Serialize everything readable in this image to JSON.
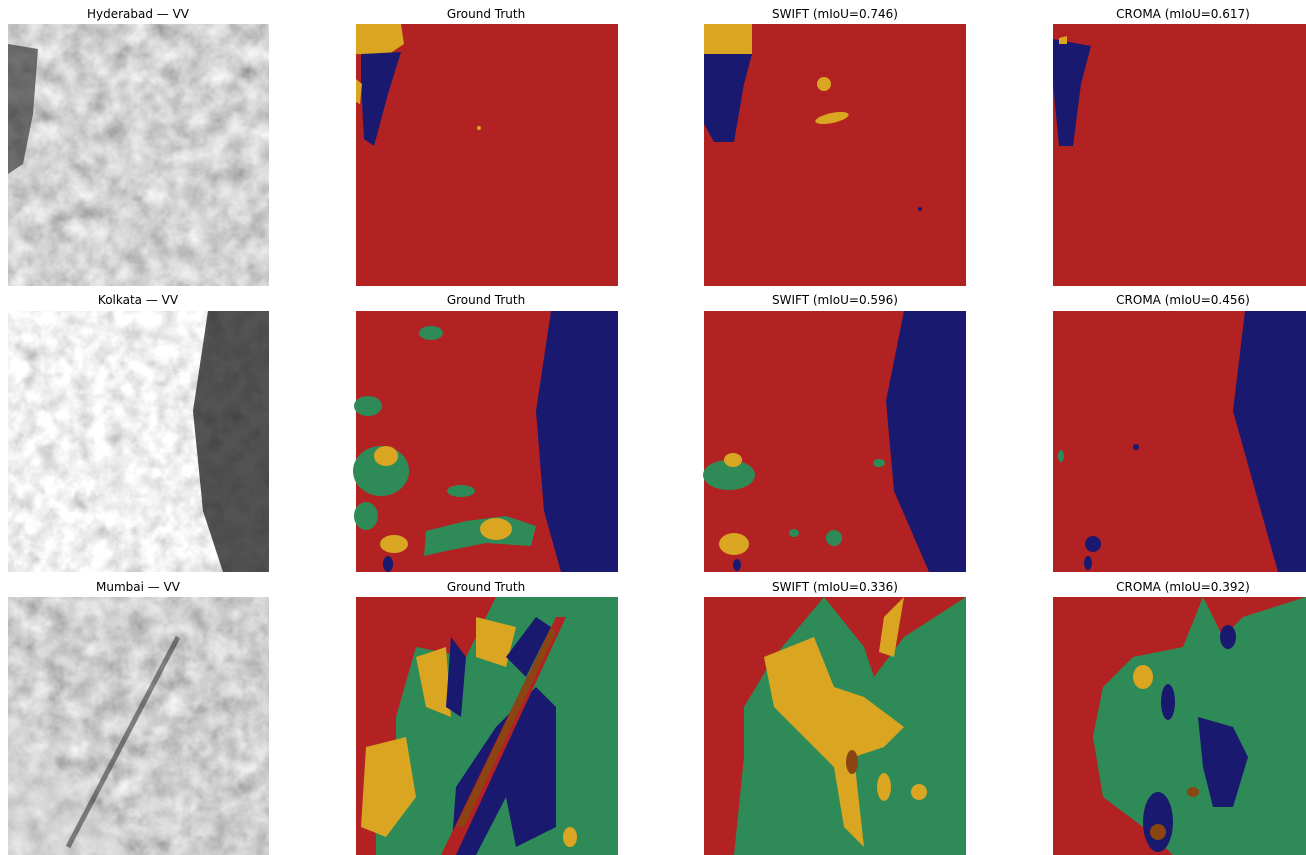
{
  "rows": [
    {
      "titles": [
        "Hyderabad — VV",
        "Ground Truth",
        "SWIFT (mIoU=0.746)",
        "CROMA (mIoU=0.617)"
      ]
    },
    {
      "titles": [
        "Kolkata — VV",
        "Ground Truth",
        "SWIFT (mIoU=0.596)",
        "CROMA (mIoU=0.456)"
      ]
    },
    {
      "titles": [
        "Mumbai — VV",
        "Ground Truth",
        "SWIFT (mIoU=0.336)",
        "CROMA (mIoU=0.392)"
      ]
    }
  ]
}
